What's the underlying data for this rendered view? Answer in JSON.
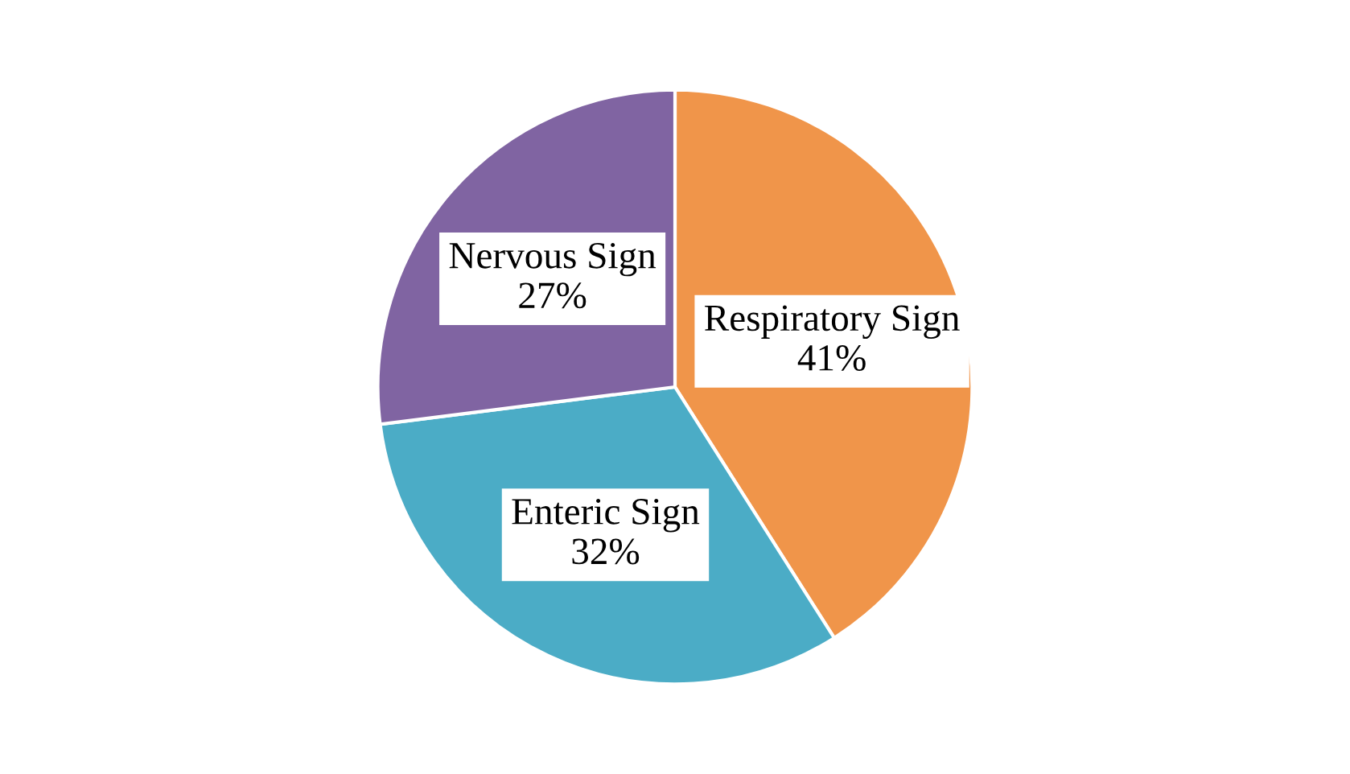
{
  "chart_data": {
    "type": "pie",
    "categories": [
      "Respiratory Sign",
      "Enteric Sign",
      "Nervous Sign"
    ],
    "values": [
      41,
      32,
      27
    ],
    "colors": [
      "#f0954a",
      "#4bacc6",
      "#8064a2"
    ],
    "value_labels": [
      "41%",
      "32%",
      "27%"
    ]
  }
}
